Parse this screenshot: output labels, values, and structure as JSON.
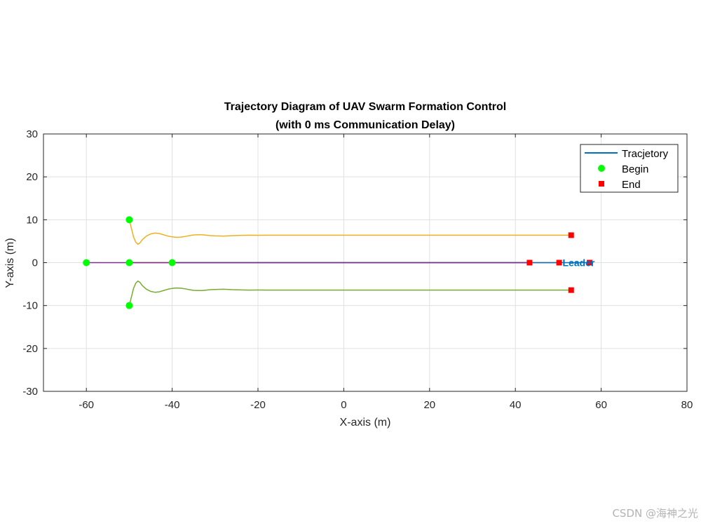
{
  "chart_data": {
    "type": "line",
    "title_line1": "Trajectory Diagram of UAV Swarm Formation Control",
    "title_line2": "(with 0 ms Communication Delay)",
    "xlabel": "X-axis (m)",
    "ylabel": "Y-axis (m)",
    "xlim": [
      -70,
      80
    ],
    "ylim": [
      -30,
      30
    ],
    "xticks": [
      -60,
      -40,
      -20,
      0,
      20,
      40,
      60,
      80
    ],
    "yticks": [
      -30,
      -20,
      -10,
      0,
      10,
      20,
      30
    ],
    "grid": true,
    "legend": {
      "placement": "top-right",
      "entries": [
        {
          "label": "Tracjetory",
          "marker": "line",
          "color": "#0072bd"
        },
        {
          "label": "Begin",
          "marker": "circle",
          "color": "#00ff00"
        },
        {
          "label": "End",
          "marker": "square",
          "color": "#ff0000"
        }
      ]
    },
    "series": [
      {
        "color": "#edb120",
        "points": [
          [
            -50,
            10
          ],
          [
            -49.5,
            8
          ],
          [
            -49,
            6
          ],
          [
            -48.5,
            4.8
          ],
          [
            -48,
            4.3
          ],
          [
            -47.5,
            4.6
          ],
          [
            -47,
            5.3
          ],
          [
            -46,
            6.2
          ],
          [
            -45,
            6.7
          ],
          [
            -44,
            6.9
          ],
          [
            -43,
            6.8
          ],
          [
            -42,
            6.5
          ],
          [
            -41,
            6.2
          ],
          [
            -40,
            6.0
          ],
          [
            -39,
            5.9
          ],
          [
            -38,
            5.95
          ],
          [
            -37,
            6.1
          ],
          [
            -36,
            6.3
          ],
          [
            -35,
            6.45
          ],
          [
            -34,
            6.5
          ],
          [
            -33,
            6.5
          ],
          [
            -32,
            6.4
          ],
          [
            -31,
            6.3
          ],
          [
            -30,
            6.25
          ],
          [
            -28,
            6.2
          ],
          [
            -26,
            6.3
          ],
          [
            -24,
            6.35
          ],
          [
            -22,
            6.4
          ],
          [
            -20,
            6.38
          ],
          [
            -15,
            6.4
          ],
          [
            -10,
            6.4
          ],
          [
            -5,
            6.4
          ],
          [
            0,
            6.4
          ],
          [
            10,
            6.4
          ],
          [
            20,
            6.4
          ],
          [
            30,
            6.4
          ],
          [
            40,
            6.4
          ],
          [
            50,
            6.4
          ],
          [
            53,
            6.4
          ]
        ]
      },
      {
        "color": "#77ac30",
        "points": [
          [
            -50,
            -10
          ],
          [
            -49.5,
            -8
          ],
          [
            -49,
            -6
          ],
          [
            -48.5,
            -4.8
          ],
          [
            -48,
            -4.3
          ],
          [
            -47.5,
            -4.6
          ],
          [
            -47,
            -5.3
          ],
          [
            -46,
            -6.2
          ],
          [
            -45,
            -6.7
          ],
          [
            -44,
            -6.9
          ],
          [
            -43,
            -6.8
          ],
          [
            -42,
            -6.5
          ],
          [
            -41,
            -6.2
          ],
          [
            -40,
            -6.0
          ],
          [
            -39,
            -5.9
          ],
          [
            -38,
            -5.95
          ],
          [
            -37,
            -6.1
          ],
          [
            -36,
            -6.3
          ],
          [
            -35,
            -6.45
          ],
          [
            -34,
            -6.5
          ],
          [
            -33,
            -6.5
          ],
          [
            -32,
            -6.4
          ],
          [
            -31,
            -6.3
          ],
          [
            -30,
            -6.25
          ],
          [
            -28,
            -6.2
          ],
          [
            -26,
            -6.3
          ],
          [
            -24,
            -6.35
          ],
          [
            -22,
            -6.4
          ],
          [
            -20,
            -6.38
          ],
          [
            -15,
            -6.4
          ],
          [
            -10,
            -6.4
          ],
          [
            -5,
            -6.4
          ],
          [
            0,
            -6.4
          ],
          [
            10,
            -6.4
          ],
          [
            20,
            -6.4
          ],
          [
            30,
            -6.4
          ],
          [
            40,
            -6.4
          ],
          [
            50,
            -6.4
          ],
          [
            53,
            -6.4
          ]
        ]
      },
      {
        "color": "#d95319",
        "points": [
          [
            -50,
            0
          ],
          [
            50.2,
            0
          ]
        ]
      },
      {
        "color": "#0072bd",
        "points": [
          [
            -40,
            0
          ],
          [
            57.3,
            0
          ]
        ]
      },
      {
        "color": "#7e2f8e",
        "points": [
          [
            -60,
            0
          ],
          [
            43.3,
            0
          ]
        ]
      }
    ],
    "begin_points": [
      [
        -50,
        10
      ],
      [
        -50,
        -10
      ],
      [
        -60,
        0
      ],
      [
        -50,
        0
      ],
      [
        -40,
        0
      ]
    ],
    "end_points": [
      [
        53,
        6.4
      ],
      [
        53,
        -6.4
      ],
      [
        43.3,
        0
      ],
      [
        50.2,
        0
      ],
      [
        57.3,
        0
      ]
    ],
    "annotations": [
      {
        "text": "Leader",
        "x": 51,
        "y": -0.2,
        "color": "#0072bd"
      }
    ]
  },
  "watermark": "CSDN @海神之光"
}
